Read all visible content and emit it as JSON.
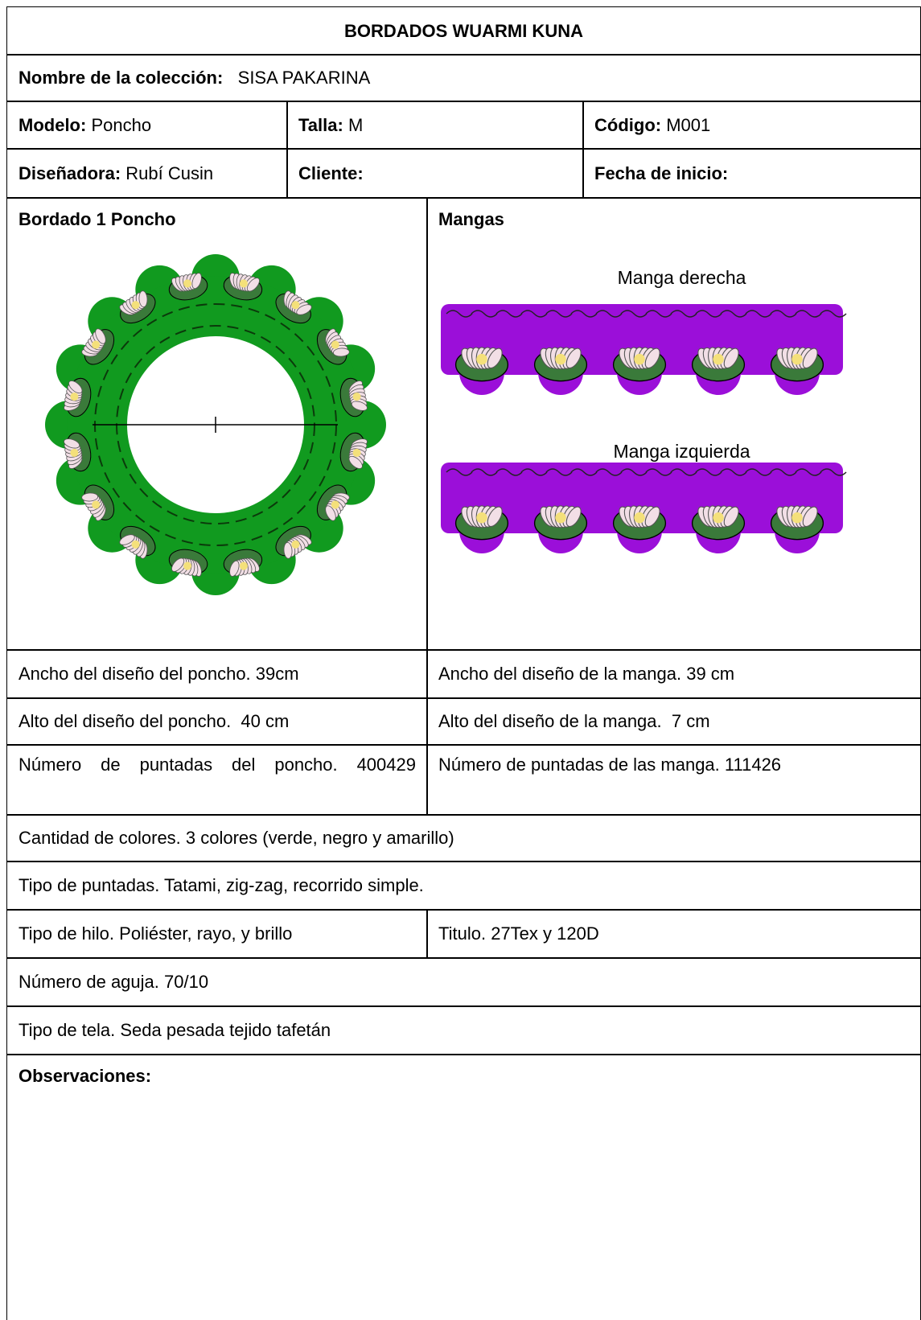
{
  "header": {
    "title": "BORDADOS WUARMI KUNA"
  },
  "collection": {
    "label": "Nombre de la colección:",
    "value": "SISA PAKARINA"
  },
  "info": [
    {
      "label": "Modelo:",
      "value": "Poncho"
    },
    {
      "label": "Talla:",
      "value": "M"
    },
    {
      "label": "Código:",
      "value": "M001"
    },
    {
      "label": "Diseñadora:",
      "value": "Rubí Cusin"
    },
    {
      "label": "Cliente:"
    },
    {
      "label": "Fecha de inicio:"
    }
  ],
  "designs": {
    "poncho": {
      "title": "Bordado 1 Poncho"
    },
    "sleeves": {
      "title": "Mangas",
      "right": "Manga derecha",
      "left": "Manga izquierda"
    }
  },
  "specs": [
    [
      "Ancho del diseño del poncho. 39cm",
      "Ancho del diseño de la manga. 39 cm"
    ],
    [
      "Alto del diseño del poncho.  40 cm",
      "Alto del diseño de la manga.  7 cm"
    ],
    [
      "Número de puntadas del poncho. 400429",
      "Número de puntadas de las manga. 111426"
    ],
    [
      "Cantidad de colores. 3 colores (verde, negro y amarillo)"
    ],
    [
      "Tipo de puntadas. Tatami, zig-zag, recorrido simple."
    ],
    [
      "Tipo de hilo. Poliéster, rayo, y brillo",
      "Titulo. 27Tex y 120D"
    ],
    [
      "Número de aguja. 70/10"
    ],
    [
      "Tipo de tela. Seda pesada tejido tafetán"
    ]
  ],
  "observations": {
    "label": "Observaciones:"
  }
}
